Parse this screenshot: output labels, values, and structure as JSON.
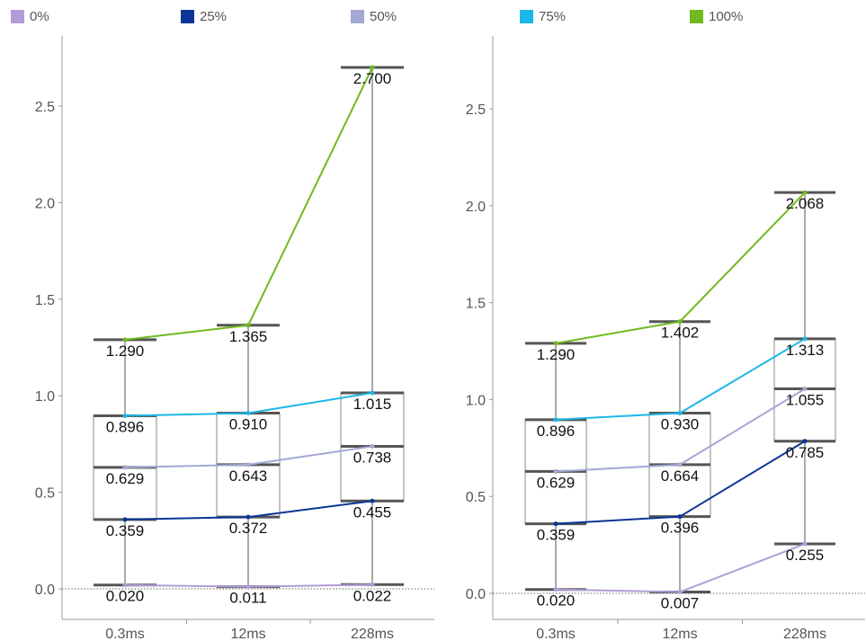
{
  "legend": {
    "items": [
      {
        "label": "0%",
        "color": "#b19cd9"
      },
      {
        "label": "25%",
        "color": "#0b3596"
      },
      {
        "label": "50%",
        "color": "#a3a8d4"
      },
      {
        "label": "75%",
        "color": "#1cb7e8"
      },
      {
        "label": "100%",
        "color": "#6fba1f"
      }
    ]
  },
  "chart_data": [
    {
      "type": "box",
      "categories": [
        "0.3ms",
        "12ms",
        "228ms"
      ],
      "ylim": [
        -0.15,
        2.85
      ],
      "yticks": [
        "0.0",
        "0.5",
        "1.0",
        "1.5",
        "2.0",
        "2.5"
      ],
      "ytick_values": [
        0.0,
        0.5,
        1.0,
        1.5,
        2.0,
        2.5
      ],
      "grid": false,
      "legend": "top",
      "series": [
        {
          "name": "0%",
          "values": [
            0.02,
            0.011,
            0.022
          ],
          "labels": [
            "0.020",
            "0.011",
            "0.022"
          ]
        },
        {
          "name": "25%",
          "values": [
            0.359,
            0.372,
            0.455
          ],
          "labels": [
            "0.359",
            "0.372",
            "0.455"
          ]
        },
        {
          "name": "50%",
          "values": [
            0.629,
            0.643,
            0.738
          ],
          "labels": [
            "0.629",
            "0.643",
            "0.738"
          ]
        },
        {
          "name": "75%",
          "values": [
            0.896,
            0.91,
            1.015
          ],
          "labels": [
            "0.896",
            "0.910",
            "1.015"
          ]
        },
        {
          "name": "100%",
          "values": [
            1.29,
            1.365,
            2.7
          ],
          "labels": [
            "1.290",
            "1.365",
            "2.700"
          ]
        }
      ]
    },
    {
      "type": "box",
      "categories": [
        "0.3ms",
        "12ms",
        "228ms"
      ],
      "ylim": [
        -0.15,
        2.85
      ],
      "yticks": [
        "0.0",
        "0.5",
        "1.0",
        "1.5",
        "2.0",
        "2.5"
      ],
      "ytick_values": [
        0.0,
        0.5,
        1.0,
        1.5,
        2.0,
        2.5
      ],
      "grid": false,
      "legend": "top",
      "series": [
        {
          "name": "0%",
          "values": [
            0.02,
            0.007,
            0.255
          ],
          "labels": [
            "0.020",
            "0.007",
            "0.255"
          ]
        },
        {
          "name": "25%",
          "values": [
            0.359,
            0.396,
            0.785
          ],
          "labels": [
            "0.359",
            "0.396",
            "0.785"
          ]
        },
        {
          "name": "50%",
          "values": [
            0.629,
            0.664,
            1.055
          ],
          "labels": [
            "0.629",
            "0.664",
            "1.055"
          ]
        },
        {
          "name": "75%",
          "values": [
            0.896,
            0.93,
            1.313
          ],
          "labels": [
            "0.896",
            "0.930",
            "1.313"
          ]
        },
        {
          "name": "100%",
          "values": [
            1.29,
            1.402,
            2.068
          ],
          "labels": [
            "1.290",
            "1.402",
            "2.068"
          ]
        }
      ]
    }
  ]
}
